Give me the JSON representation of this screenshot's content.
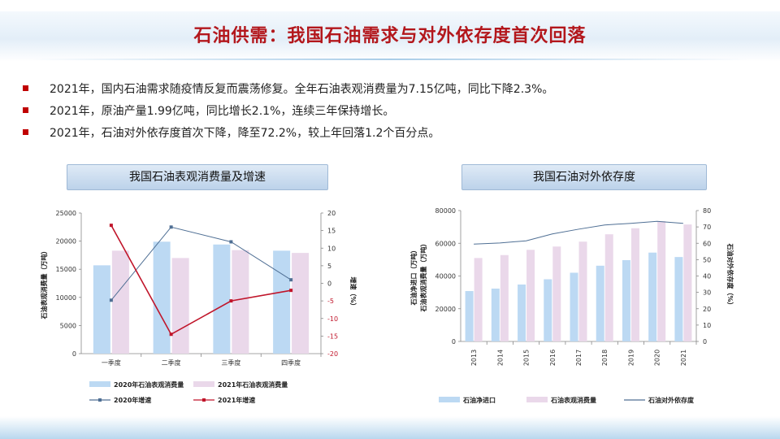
{
  "title": "石油供需：我国石油需求与对外依存度首次回落",
  "bullets": [
    "2021年，国内石油需求随疫情反复而震荡修复。全年石油表观消费量为7.15亿吨，同比下降2.3%。",
    "2021年，原油产量1.99亿吨，同比增长2.1%，连续三年保持增长。",
    "2021年，石油对外依存度首次下降，降至72.2%，较上年回落1.2个百分点。"
  ],
  "colors": {
    "title": "#b3171c",
    "bullet_marker": "#c00000",
    "bar_blue": "#bcd9f3",
    "bar_pink": "#ead8ea",
    "line_blue": "#4f6f94",
    "line_red": "#c0152a"
  },
  "chart_data": [
    {
      "type": "bar",
      "title": "我国石油表观消费量及增速",
      "categories": [
        "一季度",
        "二季度",
        "三季度",
        "四季度"
      ],
      "ylabel": "石油表观消费量（万吨）",
      "y2label": "增速（%）",
      "ylim": [
        0,
        25000
      ],
      "y2lim": [
        -20,
        20
      ],
      "yticks": [
        "0",
        "5000",
        "10000",
        "15000",
        "20000",
        "25000"
      ],
      "y2ticks": [
        "-20",
        "-15",
        "-10",
        "-5",
        "0",
        "5",
        "10",
        "15",
        "20"
      ],
      "series": [
        {
          "name": "2020年石油表观消费量",
          "kind": "bar",
          "axis": "left",
          "values": [
            15700,
            19900,
            19400,
            18300
          ]
        },
        {
          "name": "2021年石油表观消费量",
          "kind": "bar",
          "axis": "left",
          "values": [
            18300,
            17000,
            18400,
            17900
          ]
        },
        {
          "name": "2020年增速",
          "kind": "line",
          "axis": "right",
          "values": [
            -4.8,
            16.0,
            11.8,
            1.0
          ]
        },
        {
          "name": "2021年增速",
          "kind": "line",
          "axis": "right",
          "values": [
            16.5,
            -14.5,
            -5.0,
            -2.0
          ]
        }
      ],
      "legend": "bottom",
      "grid": false
    },
    {
      "type": "bar",
      "title": "我国石油对外依存度",
      "categories": [
        "2013",
        "2014",
        "2015",
        "2016",
        "2017",
        "2018",
        "2019",
        "2020",
        "2021"
      ],
      "ylabel": "石油净进口（万吨）\n石油表观消费量（万吨）",
      "y2label": "石油对外依存度（%）",
      "ylim": [
        0,
        80000
      ],
      "y2lim": [
        0,
        80
      ],
      "yticks": [
        "0",
        "20000",
        "40000",
        "60000",
        "80000"
      ],
      "y2ticks": [
        "0",
        "10",
        "20",
        "30",
        "40",
        "50",
        "60",
        "70",
        "80"
      ],
      "series": [
        {
          "name": "石油净进口",
          "kind": "bar",
          "axis": "left",
          "values": [
            30800,
            32300,
            34800,
            38000,
            42000,
            46300,
            49700,
            54300,
            51600
          ]
        },
        {
          "name": "石油表观消费量",
          "kind": "bar",
          "axis": "left",
          "values": [
            51000,
            52800,
            56000,
            58000,
            61000,
            65500,
            69200,
            73500,
            71500
          ]
        },
        {
          "name": "石油对外依存度",
          "kind": "line",
          "axis": "right",
          "values": [
            59.5,
            60.2,
            61.5,
            65.7,
            68.6,
            71.2,
            72.2,
            73.4,
            72.2
          ]
        }
      ],
      "legend": "bottom",
      "grid": false
    }
  ]
}
